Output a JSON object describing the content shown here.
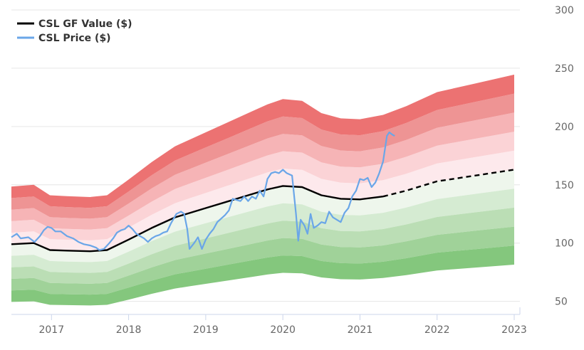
{
  "chart_data": {
    "type": "area",
    "title": "",
    "xlabel": "",
    "ylabel": "",
    "xlim": [
      2016.48,
      2023.0
    ],
    "ylim": [
      40,
      300
    ],
    "x_ticks": [
      2017,
      2018,
      2019,
      2020,
      2021,
      2022,
      2023
    ],
    "y_ticks": [
      50,
      100,
      150,
      200,
      250,
      300
    ],
    "grid": "horizontal",
    "legend_position": "top-left",
    "legend": [
      {
        "label": "CSL GF Value ($)",
        "color": "#000000"
      },
      {
        "label": "CSL Price ($)",
        "color": "#6aa6e8"
      }
    ],
    "gf_value": {
      "name": "CSL GF Value ($)",
      "historical": [
        [
          2016.48,
          99
        ],
        [
          2016.77,
          100
        ],
        [
          2016.98,
          94
        ],
        [
          2017.2,
          93.5
        ],
        [
          2017.5,
          93
        ],
        [
          2017.72,
          94
        ],
        [
          2018.0,
          103
        ],
        [
          2018.3,
          113
        ],
        [
          2018.6,
          122
        ],
        [
          2018.8,
          126
        ],
        [
          2019.0,
          130
        ],
        [
          2019.3,
          136
        ],
        [
          2019.6,
          142
        ],
        [
          2019.8,
          146
        ],
        [
          2020.0,
          149
        ],
        [
          2020.25,
          148
        ],
        [
          2020.5,
          141
        ],
        [
          2020.75,
          138
        ],
        [
          2021.0,
          137.5
        ],
        [
          2021.3,
          140
        ]
      ],
      "projected": [
        [
          2021.3,
          140
        ],
        [
          2021.6,
          145
        ],
        [
          2022.0,
          153
        ],
        [
          2022.5,
          158
        ],
        [
          2023.0,
          163
        ]
      ]
    },
    "bands": {
      "multipliers_upper": [
        1.1,
        1.2,
        1.3,
        1.4,
        1.5
      ],
      "multipliers_lower": [
        0.9,
        0.8,
        0.7,
        0.6,
        0.5
      ],
      "upper_colors": [
        "#fde9ec",
        "#fbd3d6",
        "#f6b4b6",
        "#ee9494",
        "#ec7272"
      ],
      "lower_colors": [
        "#eef6ec",
        "#d5ebd2",
        "#bbdeb5",
        "#a0d299",
        "#84c77d"
      ]
    },
    "price": {
      "name": "CSL Price ($)",
      "color": "#6aa6e8",
      "points": [
        [
          2016.48,
          105
        ],
        [
          2016.55,
          108
        ],
        [
          2016.6,
          104
        ],
        [
          2016.7,
          105
        ],
        [
          2016.78,
          101
        ],
        [
          2016.85,
          106
        ],
        [
          2016.9,
          111
        ],
        [
          2016.95,
          114
        ],
        [
          2017.0,
          113
        ],
        [
          2017.05,
          110
        ],
        [
          2017.12,
          110
        ],
        [
          2017.2,
          106
        ],
        [
          2017.28,
          104
        ],
        [
          2017.35,
          101
        ],
        [
          2017.42,
          99
        ],
        [
          2017.5,
          98
        ],
        [
          2017.58,
          96
        ],
        [
          2017.62,
          94
        ],
        [
          2017.68,
          95
        ],
        [
          2017.75,
          100
        ],
        [
          2017.8,
          104
        ],
        [
          2017.85,
          109
        ],
        [
          2017.9,
          111
        ],
        [
          2017.95,
          112
        ],
        [
          2018.0,
          115
        ],
        [
          2018.05,
          112
        ],
        [
          2018.1,
          108
        ],
        [
          2018.15,
          106
        ],
        [
          2018.2,
          104
        ],
        [
          2018.25,
          101
        ],
        [
          2018.3,
          104
        ],
        [
          2018.35,
          106
        ],
        [
          2018.4,
          107
        ],
        [
          2018.45,
          109
        ],
        [
          2018.5,
          110
        ],
        [
          2018.55,
          117
        ],
        [
          2018.62,
          125
        ],
        [
          2018.68,
          127
        ],
        [
          2018.72,
          125
        ],
        [
          2018.76,
          112
        ],
        [
          2018.79,
          95
        ],
        [
          2018.85,
          100
        ],
        [
          2018.9,
          105
        ],
        [
          2018.95,
          95
        ],
        [
          2019.0,
          103
        ],
        [
          2019.05,
          108
        ],
        [
          2019.1,
          112
        ],
        [
          2019.15,
          118
        ],
        [
          2019.2,
          121
        ],
        [
          2019.25,
          124
        ],
        [
          2019.3,
          128
        ],
        [
          2019.35,
          138
        ],
        [
          2019.4,
          137
        ],
        [
          2019.45,
          136
        ],
        [
          2019.5,
          140
        ],
        [
          2019.55,
          136
        ],
        [
          2019.6,
          140
        ],
        [
          2019.65,
          138
        ],
        [
          2019.7,
          145
        ],
        [
          2019.75,
          140
        ],
        [
          2019.8,
          155
        ],
        [
          2019.85,
          160
        ],
        [
          2019.9,
          161
        ],
        [
          2019.95,
          160
        ],
        [
          2020.0,
          163
        ],
        [
          2020.05,
          160
        ],
        [
          2020.12,
          158
        ],
        [
          2020.17,
          125
        ],
        [
          2020.2,
          102
        ],
        [
          2020.23,
          120
        ],
        [
          2020.28,
          115
        ],
        [
          2020.32,
          108
        ],
        [
          2020.36,
          125
        ],
        [
          2020.4,
          113
        ],
        [
          2020.45,
          115
        ],
        [
          2020.5,
          118
        ],
        [
          2020.55,
          117
        ],
        [
          2020.6,
          127
        ],
        [
          2020.65,
          122
        ],
        [
          2020.7,
          120
        ],
        [
          2020.75,
          118
        ],
        [
          2020.8,
          126
        ],
        [
          2020.85,
          130
        ],
        [
          2020.9,
          140
        ],
        [
          2020.95,
          145
        ],
        [
          2021.0,
          155
        ],
        [
          2021.05,
          154
        ],
        [
          2021.1,
          156
        ],
        [
          2021.15,
          148
        ],
        [
          2021.2,
          152
        ],
        [
          2021.25,
          160
        ],
        [
          2021.3,
          170
        ],
        [
          2021.35,
          192
        ],
        [
          2021.38,
          195
        ],
        [
          2021.42,
          193
        ],
        [
          2021.45,
          192
        ]
      ]
    }
  }
}
